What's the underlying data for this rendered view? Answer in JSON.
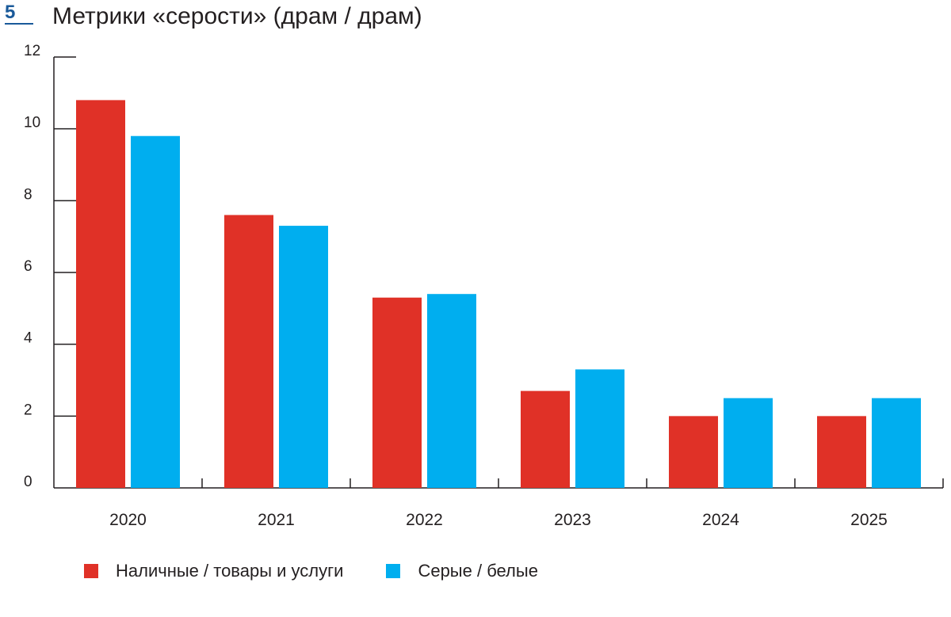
{
  "figure": {
    "number": "5",
    "title": "Метрики «серости» (драм / драм)"
  },
  "colors": {
    "series_1": "#e03127",
    "series_2": "#00aeef",
    "axis": "#231f20"
  },
  "chart_data": {
    "type": "bar",
    "title": "Метрики «серости» (драм / драм)",
    "xlabel": "",
    "ylabel": "",
    "categories": [
      "2020",
      "2021",
      "2022",
      "2023",
      "2024",
      "2025"
    ],
    "series": [
      {
        "name": "Наличные / товары и услуги",
        "values": [
          10.8,
          7.6,
          5.3,
          2.7,
          2.0,
          2.0
        ]
      },
      {
        "name": "Серые / белые",
        "values": [
          9.8,
          7.3,
          5.4,
          3.3,
          2.5,
          2.5
        ]
      }
    ],
    "ylim": [
      0,
      12
    ],
    "yticks": [
      "0",
      "2",
      "4",
      "6",
      "8",
      "10",
      "12"
    ],
    "grid": false,
    "legend_position": "bottom-left"
  }
}
